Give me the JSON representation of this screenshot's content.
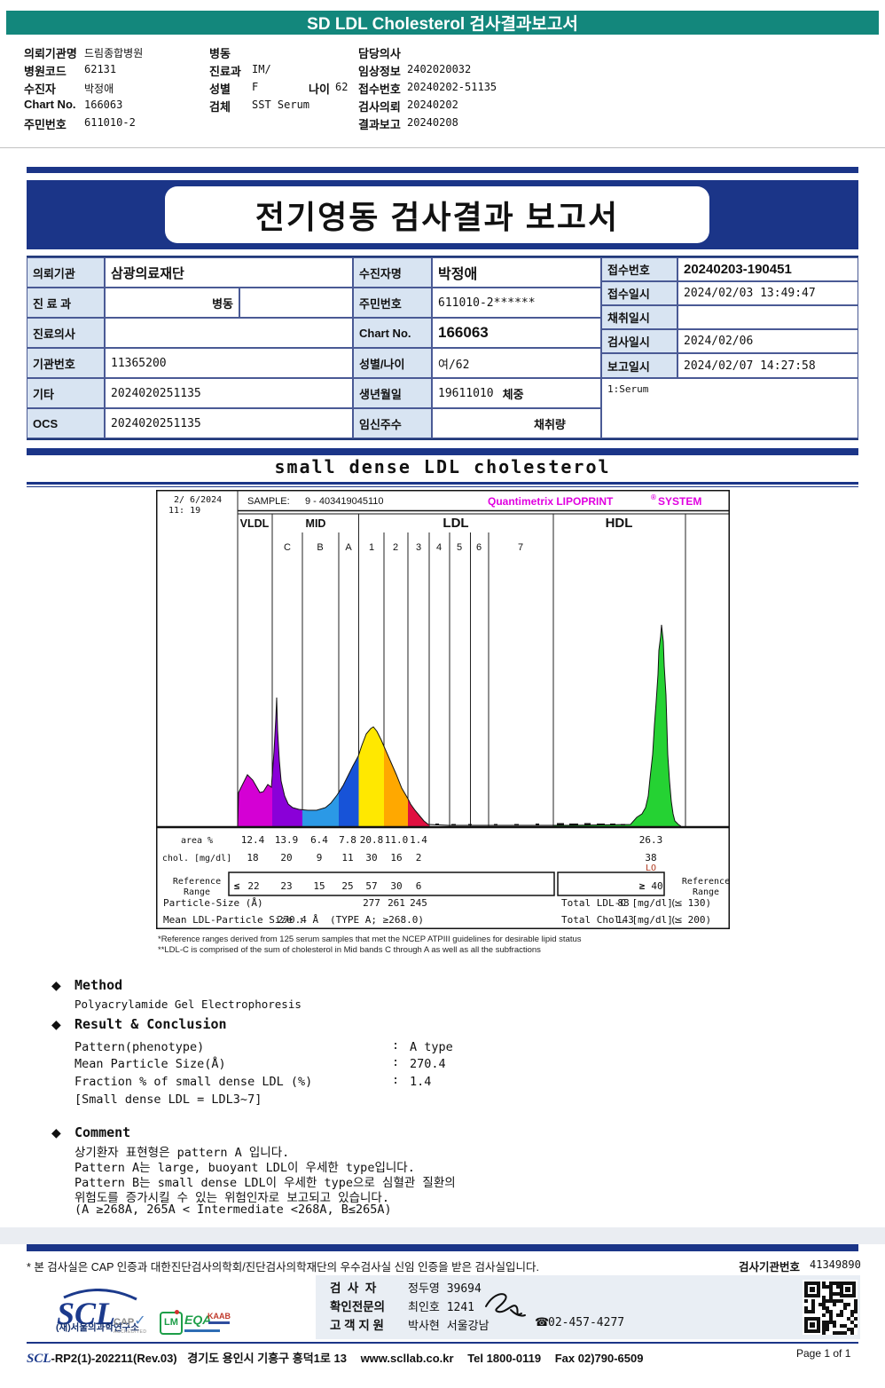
{
  "colors": {
    "teal_header": "#13877C",
    "navy": "#1B3588",
    "table_label_bg": "#D8E4F2",
    "brand_magenta": "#E000E0",
    "lo_flag": "#B03A20",
    "footer_panel": "#E9EEF4"
  },
  "top_bar": {
    "title": "SD LDL Cholesterol 검사결과보고서"
  },
  "patient_header": {
    "col1": [
      {
        "label": "의뢰기관명",
        "value": "드림종합병원"
      },
      {
        "label": "병원코드",
        "value": "62131"
      },
      {
        "label": "수진자",
        "value": "박정애"
      },
      {
        "label": "Chart No.",
        "value": "166063"
      },
      {
        "label": "주민번호",
        "value": "611010-2"
      }
    ],
    "col2": [
      {
        "label": "병동",
        "value": ""
      },
      {
        "label": "진료과",
        "value": "IM/"
      },
      {
        "label": "성별",
        "value": "F",
        "label2": "나이",
        "value2": "62"
      },
      {
        "label": "검체",
        "value": "SST Serum"
      }
    ],
    "col3": [
      {
        "label": "담당의사",
        "value": ""
      },
      {
        "label": "임상정보",
        "value": "2402020032"
      },
      {
        "label": "접수번호",
        "value": "20240202-51135"
      },
      {
        "label": "검사의뢰",
        "value": "20240202"
      },
      {
        "label": "결과보고",
        "value": "20240208"
      }
    ]
  },
  "banner": {
    "title": "전기영동 검사결과 보고서"
  },
  "order_table": {
    "rows_left": [
      [
        "의뢰기관",
        "삼광의료재단"
      ],
      [
        "진 료 과",
        "병동"
      ],
      [
        "진료의사",
        ""
      ],
      [
        "기관번호",
        "11365200"
      ],
      [
        "기타",
        "2024020251135"
      ],
      [
        "OCS",
        "2024020251135"
      ]
    ],
    "rows_mid": [
      [
        "수진자명",
        "박정애"
      ],
      [
        "주민번호",
        "611010-2******"
      ],
      [
        "Chart No.",
        "166063"
      ],
      [
        "성별/나이",
        "여/62"
      ],
      [
        "생년월일",
        "19611010"
      ],
      [
        "임신주수",
        ""
      ]
    ],
    "mid_extra": {
      "weight_label": "체중",
      "amount_label": "채취량"
    },
    "rows_right": [
      [
        "접수번호",
        "20240203-190451"
      ],
      [
        "접수일시",
        "2024/02/03 13:49:47"
      ],
      [
        "채취일시",
        ""
      ],
      [
        "검사일시",
        "2024/02/06"
      ],
      [
        "보고일시",
        "2024/02/07 14:27:58"
      ]
    ],
    "note": "1:Serum"
  },
  "section_title": "small dense LDL cholesterol",
  "chart_data": {
    "type": "area",
    "title": "small dense LDL cholesterol",
    "datetime": {
      "date": "2/ 6/2024",
      "time": "11: 19"
    },
    "sample_label": "SAMPLE:",
    "sample_id": "9 - 403419045110",
    "brand": {
      "part1": "Quantimetrix LIPOPRINT",
      "reg": "®",
      "part2": "SYSTEM"
    },
    "groups": [
      "VLDL",
      "MID",
      "LDL",
      "HDL"
    ],
    "sub_bands": [
      "C",
      "B",
      "A",
      "1",
      "2",
      "3",
      "4",
      "5",
      "6",
      "7"
    ],
    "row_labels": {
      "area": "area %",
      "chol": "chol. [mg/dl]",
      "ref1": "Reference",
      "ref2": "Range",
      "particle": "Particle-Size (Å)",
      "mean": "Mean LDL-Particle Size :"
    },
    "fractions": [
      {
        "band": "VLDL",
        "area_pct": "12.4",
        "chol": "18",
        "ref_prefix": "≤",
        "ref": "22",
        "color": "#D400D4"
      },
      {
        "band": "MID C",
        "area_pct": "13.9",
        "chol": "20",
        "ref": "23",
        "color": "#8A00D8"
      },
      {
        "band": "MID B",
        "area_pct": "6.4",
        "chol": "9",
        "ref": "15",
        "color": "#2B99E6"
      },
      {
        "band": "MID A",
        "area_pct": "7.8",
        "chol": "11",
        "ref": "25",
        "color": "#1753D8"
      },
      {
        "band": "LDL 1",
        "area_pct": "20.8",
        "chol": "30",
        "ref": "57",
        "particle_size": "277",
        "color": "#FFE800"
      },
      {
        "band": "LDL 2",
        "area_pct": "11.0",
        "chol": "16",
        "ref": "30",
        "particle_size": "261",
        "color": "#FFA800"
      },
      {
        "band": "LDL 3",
        "area_pct": "1.4",
        "chol": "2",
        "ref": "6",
        "particle_size": "245",
        "color": "#E01040"
      },
      {
        "band": "HDL",
        "area_pct": "26.3",
        "chol": "38",
        "flag": "LO",
        "ref_prefix": "≥",
        "ref": "40",
        "color": "#25D233"
      }
    ],
    "totals": {
      "ldl_label": "Total LDL-C [mg/dl]:",
      "ldl_value": "88",
      "ldl_ref": "(≤ 130)",
      "chol_label": "Total Chol. [mg/dl]:",
      "chol_value": "143",
      "chol_ref": "(≤ 200)"
    },
    "mean": {
      "value": "270.4 Å",
      "type_note": "(TYPE A; ≥268.0)"
    },
    "ref_side_label1": "Reference",
    "ref_side_label2": "Range",
    "ylim": [
      "0",
      "auto"
    ],
    "legend_position": "none"
  },
  "footnotes": [
    "*Reference ranges derived from 125 serum samples that met the NCEP ATPIII guidelines for desirable lipid status",
    "**LDL-C is comprised of the sum of cholesterol in Mid bands C through A as well as all the subfractions"
  ],
  "method": {
    "heading": "Method",
    "body": "Polyacrylamide Gel Electrophoresis"
  },
  "result": {
    "heading": "Result & Conclusion",
    "rows": [
      {
        "label": "Pattern(phenotype)",
        "sep": ":",
        "value": "A type"
      },
      {
        "label": "Mean Particle Size(Å)",
        "sep": ":",
        "value": "270.4"
      },
      {
        "label": "Fraction % of small dense LDL (%)",
        "sep": ":",
        "value": "1.4"
      }
    ],
    "note": "[Small dense LDL = LDL3~7]"
  },
  "comment": {
    "heading": "Comment",
    "lines": [
      "상기환자 표현형은 pattern A 입니다.",
      "Pattern A는 large, buoyant LDL이 우세한 type입니다.",
      "Pattern B는 small dense LDL이 우세한 type으로 심혈관 질환의",
      "위험도를 증가시킬 수 있는 위험인자로 보고되고 있습니다.",
      "(A ≥268A, 265A < Intermediate <268A, B≤265A)"
    ]
  },
  "accreditation": {
    "text": "* 본 검사실은 CAP 인증과 대한진단검사의학회/진단검사의학재단의 우수검사실 신임 인증을 받은 검사실입니다.",
    "org_label": "검사기관번호",
    "org_no": "41349890"
  },
  "footer": {
    "scl": "SCL",
    "scl_sub": "(재)서울의과학연구소",
    "logos": {
      "cap_line1": "CAP",
      "cap_line2": "ACCREDITED",
      "kslm": "LM",
      "eqa": "EQA",
      "kaab": "KAAB"
    },
    "staff": [
      {
        "label": "검  사  자",
        "value": "정두영 39694"
      },
      {
        "label": "확인전문의",
        "value": "최인호 1241"
      },
      {
        "label": "고 객 지 원",
        "value": "박사현 서울강남"
      }
    ],
    "phone": "02-457-4277",
    "doc_no": "-RP2(1)-202211(Rev.03)",
    "address": "경기도 용인시 기흥구 흥덕1로 13",
    "website": "www.scllab.co.kr",
    "tel": "Tel 1800-0119",
    "fax": "Fax 02)790-6509",
    "page": "Page 1 of 1"
  }
}
